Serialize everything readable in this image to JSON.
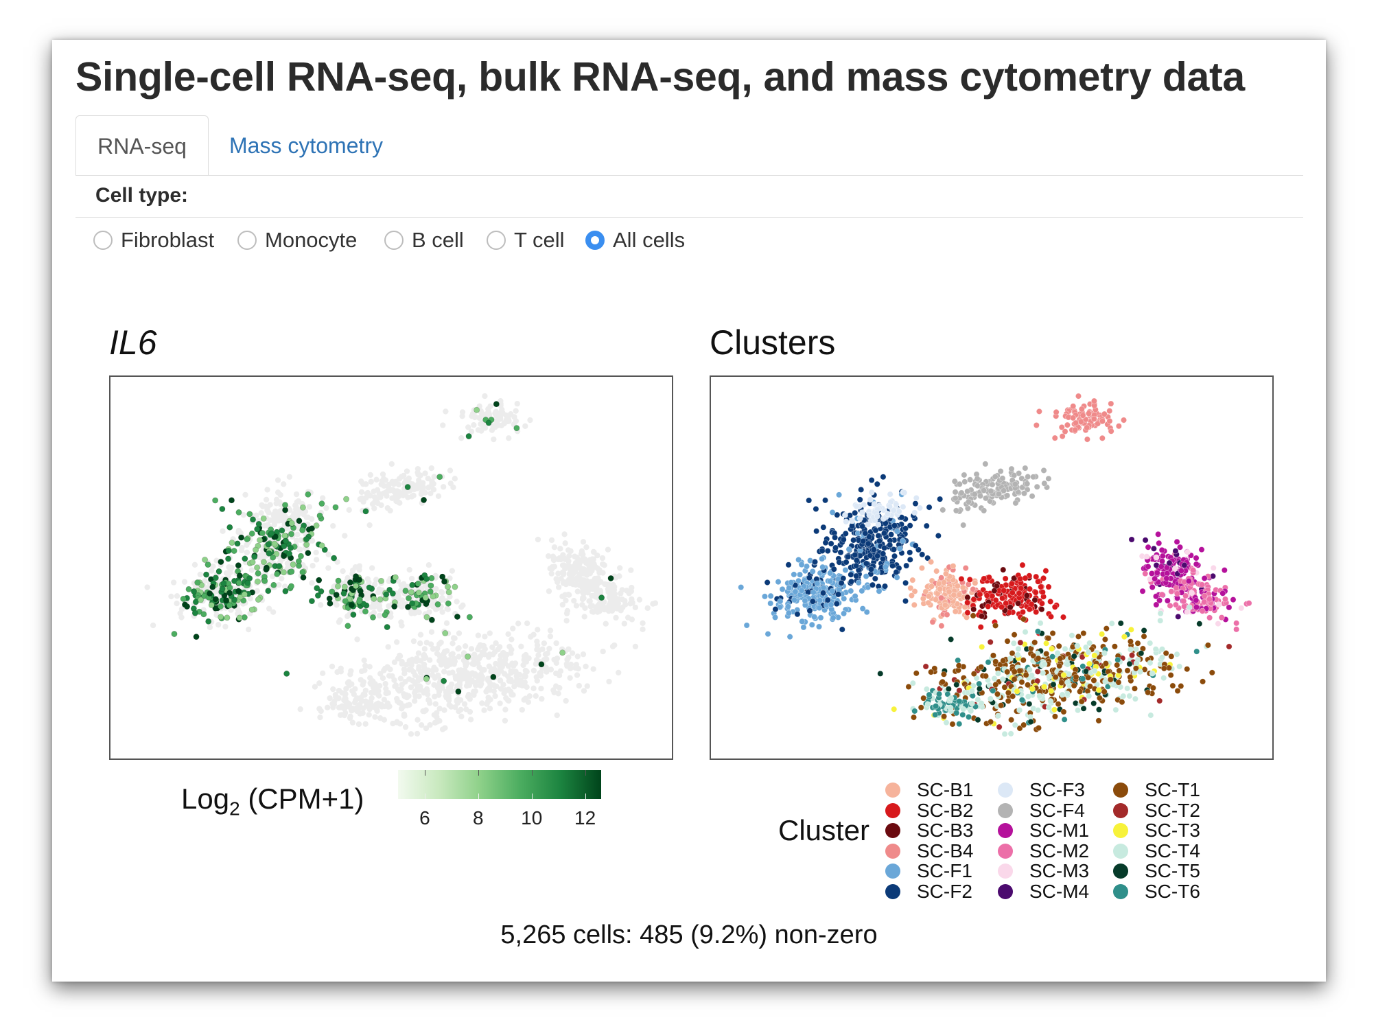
{
  "header": {
    "title": "Single-cell RNA-seq, bulk RNA-seq, and mass cytometry data"
  },
  "tabs": [
    {
      "label": "RNA-seq",
      "active": true
    },
    {
      "label": "Mass cytometry",
      "active": false
    }
  ],
  "cell_type": {
    "label": "Cell type:",
    "options": [
      "Fibroblast",
      "Monocyte",
      "B cell",
      "T cell",
      "All cells"
    ],
    "selected": "All cells"
  },
  "expression_panel": {
    "title": "IL6",
    "legend": {
      "title": "Log",
      "title_sub": "2",
      "title_rest": " (CPM+1)",
      "ticks": [
        "6",
        "8",
        "10",
        "12"
      ],
      "tick_values": [
        6,
        8,
        10,
        12
      ],
      "range": [
        5,
        12.6
      ],
      "colors": [
        "#f2faef",
        "#c9e9bf",
        "#8fd18a",
        "#4cad60",
        "#1c8440",
        "#00441b"
      ]
    }
  },
  "cluster_panel": {
    "title": "Clusters",
    "legend_title": "Cluster",
    "clusters": [
      {
        "name": "SC-B1",
        "color": "#f6b39b"
      },
      {
        "name": "SC-B2",
        "color": "#d7191c"
      },
      {
        "name": "SC-B3",
        "color": "#6b0a0f"
      },
      {
        "name": "SC-B4",
        "color": "#ef8a8a"
      },
      {
        "name": "SC-F1",
        "color": "#6aa7d8"
      },
      {
        "name": "SC-F2",
        "color": "#0b3a78"
      },
      {
        "name": "SC-F3",
        "color": "#dce8f6"
      },
      {
        "name": "SC-F4",
        "color": "#b3b3b3"
      },
      {
        "name": "SC-M1",
        "color": "#b5119b"
      },
      {
        "name": "SC-M2",
        "color": "#ec6fa8"
      },
      {
        "name": "SC-M3",
        "color": "#fad8ea"
      },
      {
        "name": "SC-M4",
        "color": "#4b0a6e"
      },
      {
        "name": "SC-T1",
        "color": "#8b4b0b"
      },
      {
        "name": "SC-T2",
        "color": "#a32a2a"
      },
      {
        "name": "SC-T3",
        "color": "#f7f23a"
      },
      {
        "name": "SC-T4",
        "color": "#c7eadf"
      },
      {
        "name": "SC-T5",
        "color": "#063b2a"
      },
      {
        "name": "SC-T6",
        "color": "#2f8f8a"
      }
    ]
  },
  "summary": "5,265 cells: 485 (9.2%) non-zero"
}
